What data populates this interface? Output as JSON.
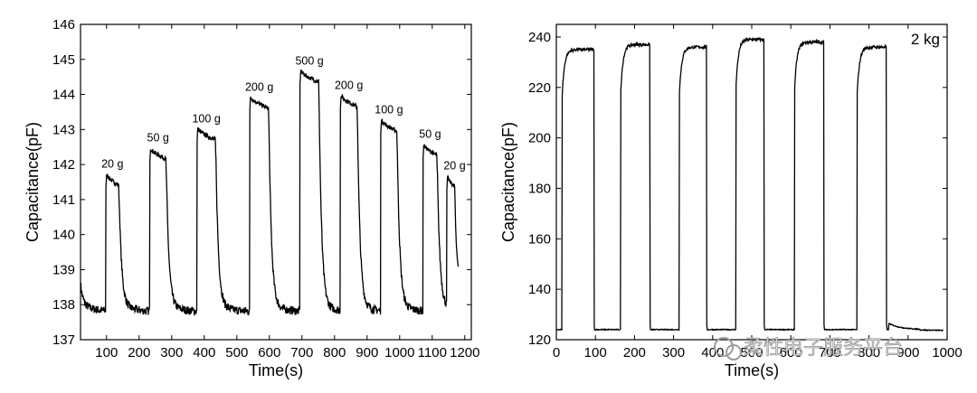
{
  "chart_data": [
    {
      "type": "line",
      "title": "",
      "xlabel": "Time(s)",
      "ylabel": "Capacitance(pF)",
      "xlim": [
        20,
        1220
      ],
      "ylim": [
        137,
        146
      ],
      "xticks": [
        100,
        200,
        300,
        400,
        500,
        600,
        700,
        800,
        900,
        1000,
        1100,
        1200
      ],
      "yticks": [
        137,
        138,
        139,
        140,
        141,
        142,
        143,
        144,
        145,
        146
      ],
      "baseline": 138,
      "pulses": [
        {
          "label": "20 g",
          "on": 98,
          "off": 138,
          "value": 141.65
        },
        {
          "label": "50 g",
          "on": 233,
          "off": 283,
          "value": 142.4
        },
        {
          "label": "100 g",
          "on": 378,
          "off": 435,
          "value": 142.95
        },
        {
          "label": "200 g",
          "on": 540,
          "off": 598,
          "value": 143.85
        },
        {
          "label": "500 g",
          "on": 694,
          "off": 752,
          "value": 144.6
        },
        {
          "label": "200 g",
          "on": 818,
          "off": 870,
          "value": 143.9
        },
        {
          "label": "100 g",
          "on": 942,
          "off": 992,
          "value": 143.2
        },
        {
          "label": "50 g",
          "on": 1072,
          "off": 1115,
          "value": 142.5
        },
        {
          "label": "20 g",
          "on": 1145,
          "off": 1170,
          "value": 141.6
        }
      ]
    },
    {
      "type": "line",
      "title": "",
      "annotation": "2 kg",
      "xlabel": "Time(s)",
      "ylabel": "Capacitance(pF)",
      "xlim": [
        0,
        1000
      ],
      "ylim": [
        120,
        245
      ],
      "xticks": [
        0,
        100,
        200,
        300,
        400,
        500,
        600,
        700,
        800,
        900,
        1000
      ],
      "yticks": [
        120,
        140,
        160,
        180,
        200,
        220,
        240
      ],
      "baseline": 124,
      "pulses": [
        {
          "on": 15,
          "off": 97,
          "value": 235
        },
        {
          "on": 165,
          "off": 240,
          "value": 237
        },
        {
          "on": 315,
          "off": 385,
          "value": 236
        },
        {
          "on": 460,
          "off": 532,
          "value": 239
        },
        {
          "on": 610,
          "off": 685,
          "value": 238
        },
        {
          "on": 770,
          "off": 845,
          "value": 236
        }
      ]
    }
  ],
  "watermark": {
    "text": "柔性电子服务平台"
  }
}
